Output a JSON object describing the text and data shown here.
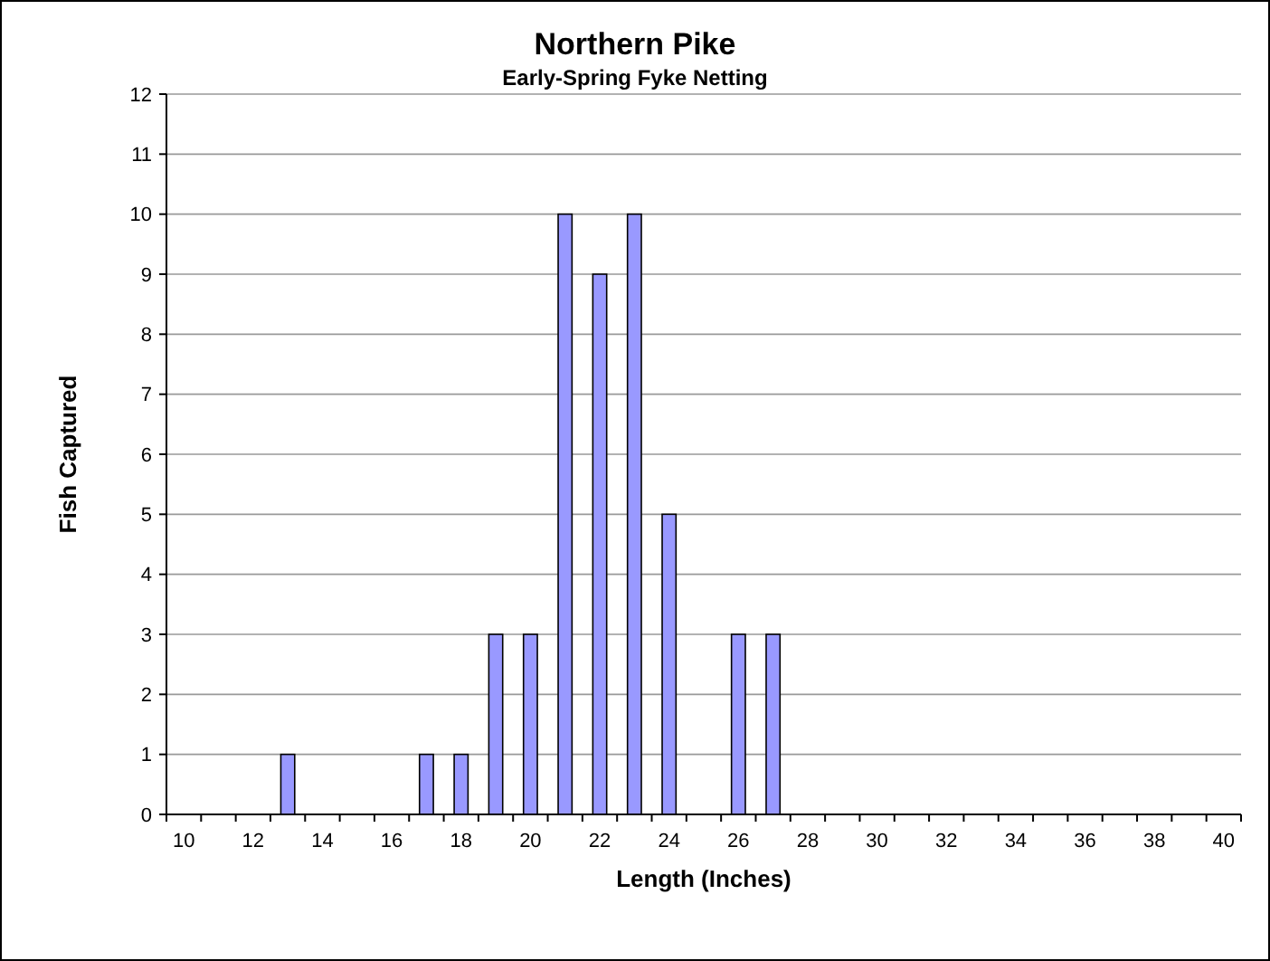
{
  "chart_data": {
    "type": "bar",
    "title": "Northern Pike",
    "subtitle": "Early-Spring Fyke Netting",
    "xlabel": "Length (Inches)",
    "ylabel": "Fish Captured",
    "categories": [
      "10",
      null,
      "12",
      null,
      "14",
      null,
      "16",
      null,
      "18",
      null,
      "20",
      null,
      "22",
      null,
      "24",
      null,
      "26",
      null,
      "28",
      null,
      "30",
      null,
      "32",
      null,
      "34",
      null,
      "36",
      null,
      "38",
      null,
      "40"
    ],
    "values": [
      0,
      0,
      0,
      1,
      0,
      0,
      0,
      1,
      1,
      3,
      3,
      10,
      9,
      10,
      5,
      0,
      3,
      3,
      0,
      0,
      0,
      0,
      0,
      0,
      0,
      0,
      0,
      0,
      0,
      0,
      0
    ],
    "color": "#9999ff",
    "ylim": [
      0,
      12
    ],
    "yticks": [
      0,
      1,
      2,
      3,
      4,
      5,
      6,
      7,
      8,
      9,
      10,
      11,
      12
    ],
    "grid": "y"
  }
}
